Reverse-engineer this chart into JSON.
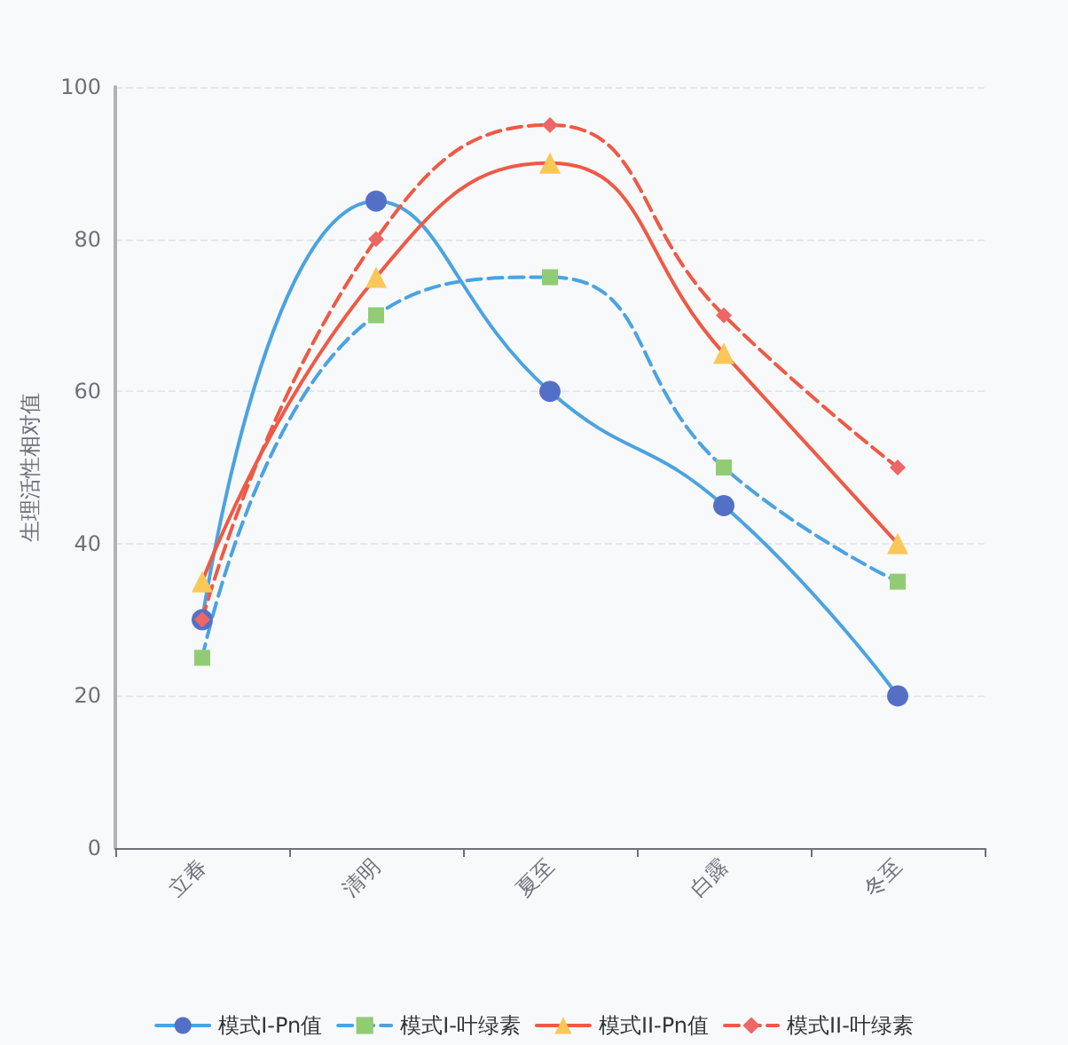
{
  "chart_data": {
    "type": "line",
    "ylabel": "生理活性相对值",
    "categories": [
      "立春",
      "清明",
      "夏至",
      "白露",
      "冬至"
    ],
    "ylim": [
      0,
      100
    ],
    "yticks": [
      0,
      20,
      40,
      60,
      80,
      100
    ],
    "grid": "y",
    "legend": "bottom",
    "series": [
      {
        "name": "模式I-Pn值",
        "color": "#4ba3e0",
        "colors": [
          "#5470c6",
          "#5470c6",
          "#5470c6",
          "#5470c6",
          "#5470c6"
        ],
        "marker": "circle",
        "line_style": "solid",
        "values": [
          30,
          85,
          60,
          45,
          20
        ]
      },
      {
        "name": "模式I-叶绿素",
        "color": "#4ba3e0",
        "colors": [
          "#91cc75",
          "#91cc75",
          "#91cc75",
          "#91cc75",
          "#91cc75"
        ],
        "marker": "square",
        "line_style": "dashed",
        "values": [
          25,
          70,
          75,
          50,
          35
        ]
      },
      {
        "name": "模式II-Pn值",
        "color": "#ee5a45",
        "colors": [
          "#fac858",
          "#fac858",
          "#fac858",
          "#fac858",
          "#fac858"
        ],
        "marker": "triangle",
        "line_style": "solid",
        "values": [
          35,
          75,
          90,
          65,
          40
        ]
      },
      {
        "name": "模式II-叶绿素",
        "color": "#ee5a45",
        "colors": [
          "#ee6666",
          "#ee6666",
          "#ee6666",
          "#ee6666",
          "#ee6666"
        ],
        "marker": "diamond",
        "line_style": "dashed",
        "values": [
          30,
          80,
          95,
          70,
          50
        ]
      }
    ]
  }
}
